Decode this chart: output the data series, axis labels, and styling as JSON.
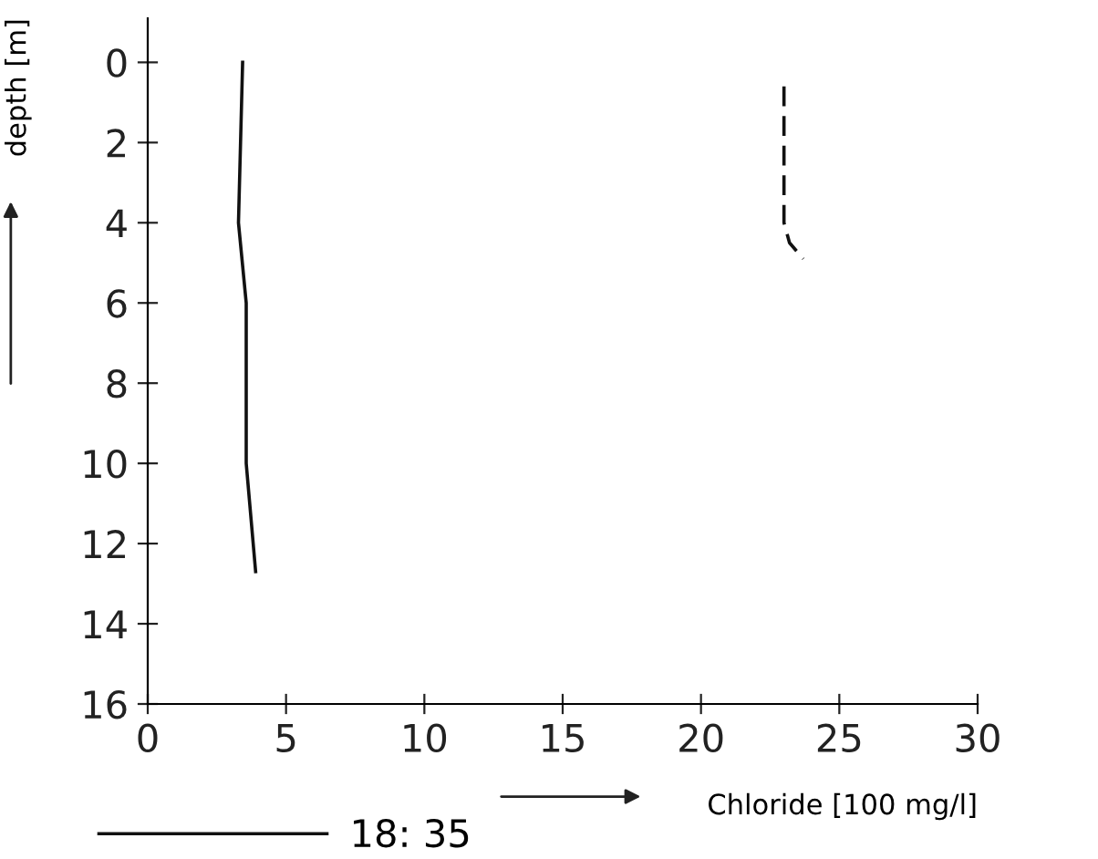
{
  "chart_data": {
    "type": "line",
    "xlabel": "Chloride [100 mg/l]",
    "ylabel": "depth [m]",
    "series": [
      {
        "name": "18: 35",
        "color": "#111111",
        "line_style": "solid",
        "x": [
          3.43,
          3.28,
          3.56,
          3.56,
          3.9
        ],
        "values": [
          0,
          4,
          6,
          10,
          12.7
        ]
      },
      {
        "color": "#111111",
        "line_style": "dashed",
        "x": [
          23.0,
          23.0,
          23.0,
          23.2,
          23.7
        ],
        "values": [
          0.6,
          3.0,
          4.0,
          4.5,
          4.9
        ]
      }
    ],
    "xlim": [
      0,
      30
    ],
    "xticks": [
      0,
      5,
      10,
      15,
      20,
      25,
      30
    ],
    "ylim": [
      16,
      -1.1
    ],
    "yticks": [
      0,
      2,
      4,
      6,
      8,
      10,
      12,
      14,
      16
    ],
    "grid": false,
    "legend": "bottom",
    "marker": "none"
  }
}
